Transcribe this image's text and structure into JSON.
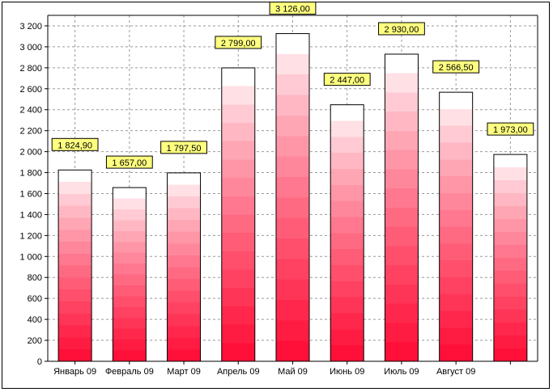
{
  "chart_data": {
    "type": "bar",
    "categories": [
      "Январь 09",
      "Февраль 09",
      "Март 09",
      "Апрель 09",
      "Май 09",
      "Июнь 09",
      "Июль 09",
      "Август 09",
      ""
    ],
    "values": [
      1824.9,
      1657.0,
      1797.5,
      2799.0,
      3126.0,
      2447.0,
      2930.0,
      2566.5,
      1973.0
    ],
    "data_labels": [
      "1 824,90",
      "1 657,00",
      "1 797,50",
      "2 799,00",
      "3 126,00",
      "2 447,00",
      "2 930,00",
      "2 566,50",
      "1 973,00"
    ],
    "y_ticks": [
      "0",
      "200",
      "400",
      "600",
      "800",
      "1 000",
      "1 200",
      "1 400",
      "1 600",
      "1 800",
      "2 000",
      "2 200",
      "2 400",
      "2 600",
      "2 800",
      "3 000",
      "3 200"
    ],
    "ylim": [
      0,
      3300
    ],
    "grid": true,
    "grid_style": "dashed",
    "title": "",
    "xlabel": "",
    "ylabel": "",
    "colors": {
      "bar_top": "#ffffff",
      "bar_bottom": "#ff1038",
      "label_fill": "#ffff80",
      "grid": "#9a9a9a"
    }
  }
}
